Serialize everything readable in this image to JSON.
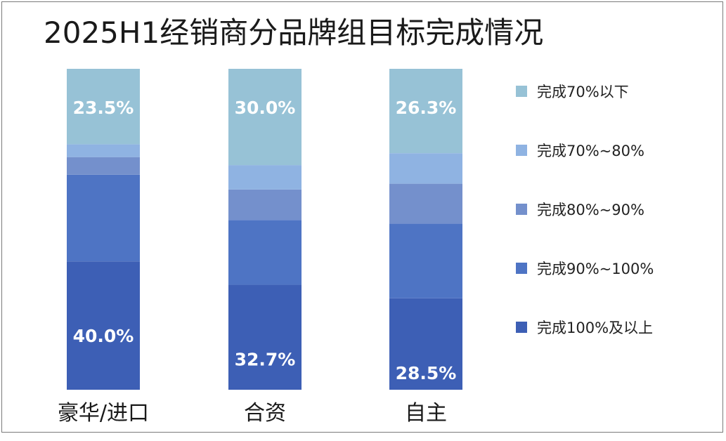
{
  "chart_data": {
    "type": "bar",
    "stacked": true,
    "percent_stacked": true,
    "title": "2025H1经销商分品牌组目标完成情况",
    "categories": [
      "豪华/进口",
      "合资",
      "自主"
    ],
    "series": [
      {
        "name": "完成100%及以上",
        "color": "#3d5fb5",
        "values": [
          40.0,
          32.7,
          28.5
        ],
        "labels": [
          "40.0%",
          "32.7%",
          "28.5%"
        ]
      },
      {
        "name": "完成90%~100%",
        "color": "#4e74c4",
        "values": [
          27.0,
          20.2,
          23.3
        ],
        "labels": [
          "",
          "",
          ""
        ]
      },
      {
        "name": "完成80%~90%",
        "color": "#7490cc",
        "values": [
          5.5,
          9.5,
          12.4
        ],
        "labels": [
          "",
          "",
          ""
        ]
      },
      {
        "name": "完成70%~80%",
        "color": "#8fb3e2",
        "values": [
          4.0,
          7.6,
          9.5
        ],
        "labels": [
          "",
          "",
          ""
        ]
      },
      {
        "name": "完成70%以下",
        "color": "#97c2d6",
        "values": [
          23.5,
          30.0,
          26.3
        ],
        "labels": [
          "23.5%",
          "30.0%",
          "26.3%"
        ]
      }
    ],
    "legend_order": [
      "完成70%以下",
      "完成70%~80%",
      "完成80%~90%",
      "完成90%~100%",
      "完成100%及以上"
    ],
    "legend_position": "right",
    "ylim": [
      0,
      100
    ],
    "grid": false,
    "xlabel": "",
    "ylabel": ""
  }
}
